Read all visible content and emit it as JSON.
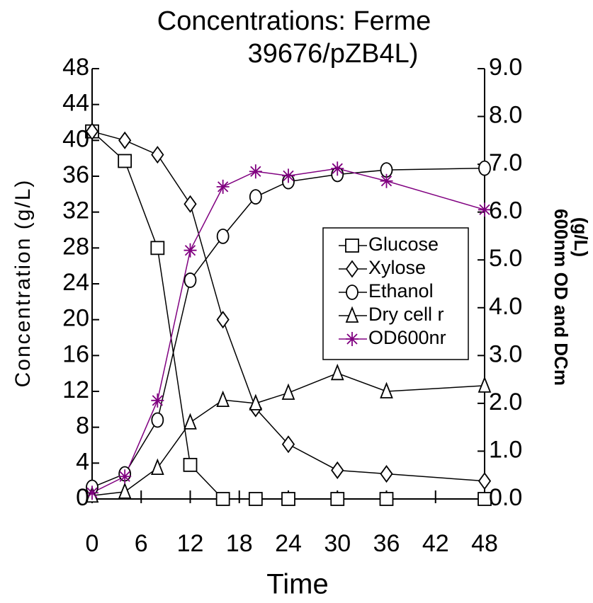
{
  "chart_data": {
    "type": "line",
    "title": [
      "Concentrations: Ferme",
      "39676/pZB4L)"
    ],
    "x_label": "Time",
    "y_label": "Concentration (g/L)",
    "y2_label": [
      "600nm OD and DCm",
      "(g/L)"
    ],
    "x": [
      0,
      4,
      8,
      12,
      16,
      20,
      24,
      30,
      36,
      48
    ],
    "xlim": [
      0,
      48
    ],
    "xticks": [
      0,
      6,
      12,
      18,
      24,
      30,
      36,
      42,
      48
    ],
    "ylim": [
      0,
      48
    ],
    "yticks": [
      0,
      4,
      8,
      12,
      16,
      20,
      24,
      28,
      32,
      36,
      40,
      44,
      48
    ],
    "y2lim": [
      0,
      9
    ],
    "y2ticks": [
      {
        "value": 0,
        "label": "0.0"
      },
      {
        "value": 1,
        "label": "1.0"
      },
      {
        "value": 2,
        "label": "2.0"
      },
      {
        "value": 3,
        "label": "3.0"
      },
      {
        "value": 4,
        "label": "4.0"
      },
      {
        "value": 5,
        "label": "5.0"
      },
      {
        "value": 6,
        "label": "6.0"
      },
      {
        "value": 7,
        "label": "7.0"
      },
      {
        "value": 8,
        "label": "8.0"
      },
      {
        "value": 9,
        "label": "9.0"
      }
    ],
    "series": [
      {
        "name": "Glucose",
        "color": "#000000",
        "marker": "square",
        "values": [
          41,
          37.7,
          28,
          3.8,
          0,
          0,
          0,
          0,
          0,
          0
        ]
      },
      {
        "name": "Xylose",
        "color": "#000000",
        "marker": "diamond",
        "values": [
          41,
          40,
          38.4,
          32.9,
          20,
          10.1,
          6.1,
          3.2,
          2.8,
          2
        ]
      },
      {
        "name": "Ethanol",
        "color": "#000000",
        "marker": "circle",
        "values": [
          1.3,
          2.8,
          8.8,
          24.4,
          29.3,
          33.7,
          35.4,
          36.2,
          36.7,
          36.9
        ]
      },
      {
        "name": "Dry cell r",
        "color": "#000000",
        "marker": "triangle",
        "axis": "y2",
        "values": [
          0.07,
          0.15,
          0.65,
          1.6,
          2.07,
          2.0,
          2.22,
          2.63,
          2.25,
          2.37
        ]
      },
      {
        "name": "OD600nr",
        "color": "#800080",
        "marker": "star",
        "axis": "y2",
        "values": [
          0.13,
          0.47,
          2.06,
          5.2,
          6.53,
          6.85,
          6.76,
          6.91,
          6.65,
          6.05
        ]
      }
    ],
    "legend": "center-right"
  }
}
